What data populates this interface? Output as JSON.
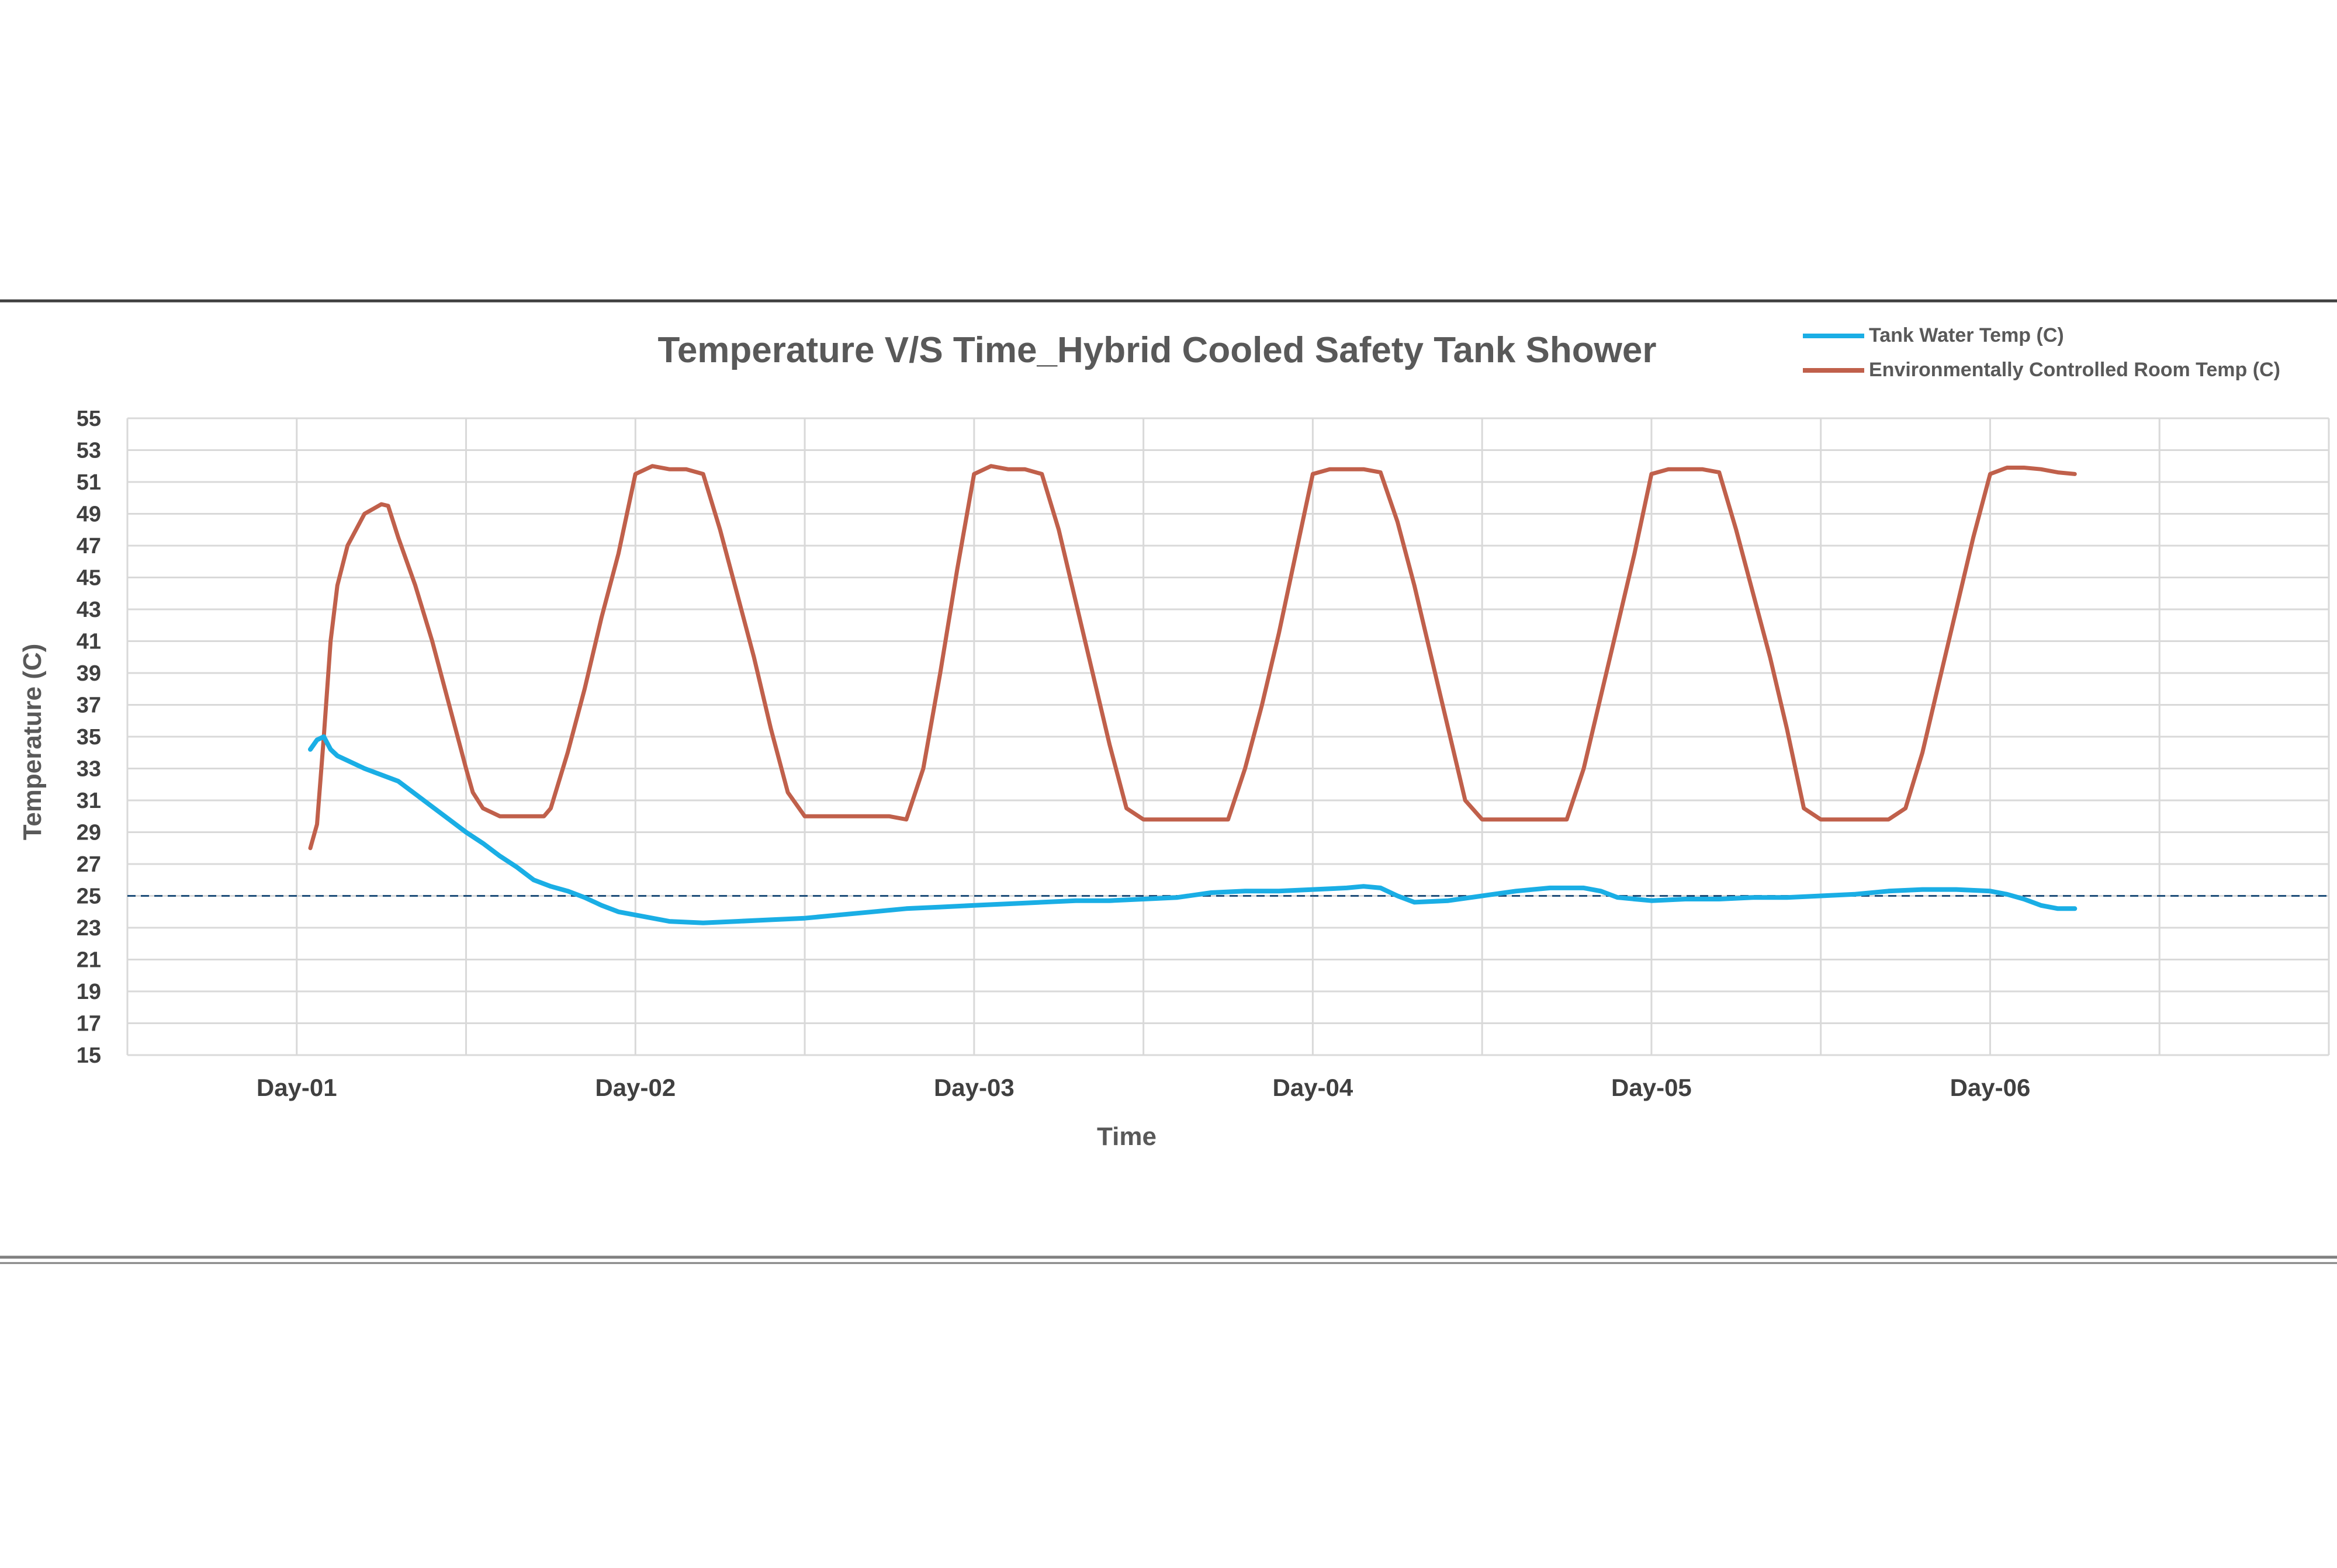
{
  "chart_data": {
    "type": "line",
    "title": "Temperature V/S Time_Hybrid Cooled Safety Tank Shower",
    "xlabel": "Time",
    "ylabel": "Temperature (C)",
    "ylim": [
      15,
      55
    ],
    "y_ticks": [
      "55",
      "53",
      "51",
      "49",
      "47",
      "45",
      "43",
      "41",
      "39",
      "37",
      "35",
      "33",
      "31",
      "29",
      "27",
      "25",
      "23",
      "21",
      "19",
      "17",
      "15"
    ],
    "x_ticks": [
      {
        "label": "Day-01",
        "value": 1
      },
      {
        "label": "Day-02",
        "value": 2
      },
      {
        "label": "Day-03",
        "value": 3
      },
      {
        "label": "Day-04",
        "value": 4
      },
      {
        "label": "Day-05",
        "value": 5
      },
      {
        "label": "Day-06",
        "value": 6
      }
    ],
    "xlim": [
      0.5,
      7.0
    ],
    "grid": true,
    "legend_position": "top-right",
    "reference_line": {
      "y": 25,
      "style": "dashed",
      "color": "#1f4e79"
    },
    "series": [
      {
        "name": "Tank Water Temp (C)",
        "color": "#1aaee5",
        "x": [
          1.04,
          1.06,
          1.08,
          1.1,
          1.12,
          1.15,
          1.2,
          1.25,
          1.3,
          1.35,
          1.4,
          1.45,
          1.5,
          1.55,
          1.6,
          1.65,
          1.7,
          1.75,
          1.8,
          1.85,
          1.9,
          1.95,
          2.0,
          2.1,
          2.2,
          2.3,
          2.4,
          2.5,
          2.6,
          2.7,
          2.8,
          2.9,
          3.0,
          3.1,
          3.2,
          3.3,
          3.4,
          3.5,
          3.6,
          3.7,
          3.8,
          3.9,
          4.0,
          4.1,
          4.15,
          4.2,
          4.25,
          4.3,
          4.4,
          4.5,
          4.6,
          4.7,
          4.8,
          4.85,
          4.9,
          5.0,
          5.1,
          5.2,
          5.3,
          5.4,
          5.5,
          5.6,
          5.7,
          5.8,
          5.9,
          6.0,
          6.05,
          6.1,
          6.15,
          6.2,
          6.25
        ],
        "y": [
          34.2,
          34.8,
          35.0,
          34.2,
          33.8,
          33.5,
          33.0,
          32.6,
          32.2,
          31.4,
          30.6,
          29.8,
          29.0,
          28.3,
          27.5,
          26.8,
          26.0,
          25.6,
          25.3,
          24.9,
          24.4,
          24.0,
          23.8,
          23.4,
          23.3,
          23.4,
          23.5,
          23.6,
          23.8,
          24.0,
          24.2,
          24.3,
          24.4,
          24.5,
          24.6,
          24.7,
          24.7,
          24.8,
          24.9,
          25.2,
          25.3,
          25.3,
          25.4,
          25.5,
          25.6,
          25.5,
          25.0,
          24.6,
          24.7,
          25.0,
          25.3,
          25.5,
          25.5,
          25.3,
          24.9,
          24.7,
          24.8,
          24.8,
          24.9,
          24.9,
          25.0,
          25.1,
          25.3,
          25.4,
          25.4,
          25.3,
          25.1,
          24.8,
          24.4,
          24.2,
          24.2
        ]
      },
      {
        "name": "Environmentally Controlled Room Temp (C)",
        "color": "#c0604b",
        "x": [
          1.04,
          1.06,
          1.08,
          1.1,
          1.12,
          1.15,
          1.2,
          1.25,
          1.27,
          1.3,
          1.35,
          1.4,
          1.45,
          1.5,
          1.52,
          1.55,
          1.6,
          1.65,
          1.7,
          1.73,
          1.75,
          1.8,
          1.85,
          1.9,
          1.95,
          2.0,
          2.05,
          2.1,
          2.15,
          2.2,
          2.25,
          2.3,
          2.35,
          2.4,
          2.45,
          2.5,
          2.55,
          2.6,
          2.65,
          2.7,
          2.75,
          2.8,
          2.85,
          2.9,
          2.95,
          3.0,
          3.05,
          3.1,
          3.15,
          3.2,
          3.25,
          3.3,
          3.35,
          3.4,
          3.45,
          3.5,
          3.55,
          3.6,
          3.65,
          3.7,
          3.75,
          3.8,
          3.85,
          3.9,
          3.95,
          4.0,
          4.05,
          4.1,
          4.15,
          4.2,
          4.25,
          4.3,
          4.35,
          4.4,
          4.45,
          4.5,
          4.55,
          4.6,
          4.65,
          4.7,
          4.75,
          4.8,
          4.85,
          4.9,
          4.95,
          5.0,
          5.05,
          5.1,
          5.15,
          5.2,
          5.25,
          5.3,
          5.35,
          5.4,
          5.45,
          5.5,
          5.55,
          5.6,
          5.65,
          5.7,
          5.75,
          5.8,
          5.85,
          5.9,
          5.95,
          6.0,
          6.05,
          6.1,
          6.15,
          6.2,
          6.25
        ],
        "y": [
          28.0,
          29.5,
          35.0,
          41.0,
          44.5,
          47.0,
          49.0,
          49.6,
          49.5,
          47.5,
          44.5,
          41.0,
          37.0,
          33.0,
          31.5,
          30.5,
          30.0,
          30.0,
          30.0,
          30.0,
          30.5,
          34.0,
          38.0,
          42.5,
          46.5,
          51.5,
          52.0,
          51.8,
          51.8,
          51.5,
          48.0,
          44.0,
          40.0,
          35.5,
          31.5,
          30.0,
          30.0,
          30.0,
          30.0,
          30.0,
          30.0,
          29.8,
          33.0,
          39.0,
          45.5,
          51.5,
          52.0,
          51.8,
          51.8,
          51.5,
          48.0,
          43.5,
          39.0,
          34.5,
          30.5,
          29.8,
          29.8,
          29.8,
          29.8,
          29.8,
          29.8,
          33.0,
          37.0,
          41.5,
          46.5,
          51.5,
          51.8,
          51.8,
          51.8,
          51.6,
          48.5,
          44.5,
          40.0,
          35.5,
          31.0,
          29.8,
          29.8,
          29.8,
          29.8,
          29.8,
          29.8,
          33.0,
          37.5,
          42.0,
          46.5,
          51.5,
          51.8,
          51.8,
          51.8,
          51.6,
          48.0,
          44.0,
          40.0,
          35.5,
          30.5,
          29.8,
          29.8,
          29.8,
          29.8,
          29.8,
          30.5,
          34.0,
          38.5,
          43.0,
          47.5,
          51.5,
          51.9,
          51.9,
          51.8,
          51.6,
          51.5
        ]
      }
    ]
  }
}
